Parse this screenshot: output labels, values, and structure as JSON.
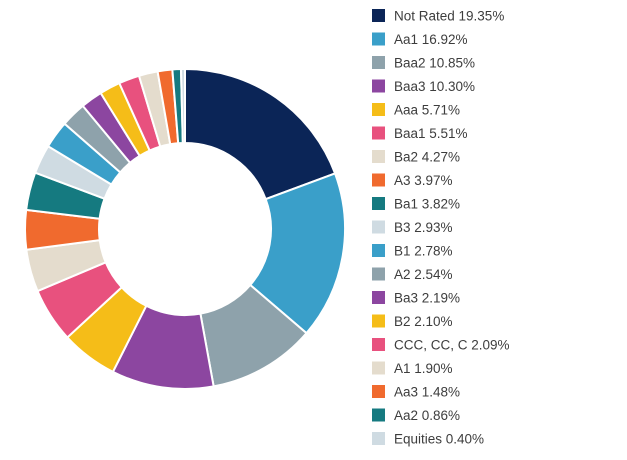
{
  "chart_data": {
    "type": "pie",
    "variant": "donut",
    "start_angle": "12 o'clock, clockwise",
    "legend_position": "right",
    "slices": [
      {
        "label": "Not Rated",
        "value": 19.35,
        "text": "Not Rated 19.35%",
        "color": "#0b2557"
      },
      {
        "label": "Aa1",
        "value": 16.92,
        "text": "Aa1 16.92%",
        "color": "#3a9fc9"
      },
      {
        "label": "Baa2",
        "value": 10.85,
        "text": "Baa2 10.85%",
        "color": "#8ea2ab"
      },
      {
        "label": "Baa3",
        "value": 10.3,
        "text": "Baa3 10.30%",
        "color": "#8c46a0"
      },
      {
        "label": "Aaa",
        "value": 5.71,
        "text": "Aaa 5.71%",
        "color": "#f5bd18"
      },
      {
        "label": "Baa1",
        "value": 5.51,
        "text": "Baa1 5.51%",
        "color": "#e8517e"
      },
      {
        "label": "Ba2",
        "value": 4.27,
        "text": "Ba2 4.27%",
        "color": "#e4dccd"
      },
      {
        "label": "A3",
        "value": 3.97,
        "text": "A3 3.97%",
        "color": "#f06a2e"
      },
      {
        "label": "Ba1",
        "value": 3.82,
        "text": "Ba1 3.82%",
        "color": "#157a80"
      },
      {
        "label": "B3",
        "value": 2.93,
        "text": "B3 2.93%",
        "color": "#cfdbe2"
      },
      {
        "label": "B1",
        "value": 2.78,
        "text": "B1 2.78%",
        "color": "#3a9fc9"
      },
      {
        "label": "A2",
        "value": 2.54,
        "text": "A2 2.54%",
        "color": "#8ea2ab"
      },
      {
        "label": "Ba3",
        "value": 2.19,
        "text": "Ba3 2.19%",
        "color": "#8c46a0"
      },
      {
        "label": "B2",
        "value": 2.1,
        "text": "B2 2.10%",
        "color": "#f5bd18"
      },
      {
        "label": "CCC, CC, C",
        "value": 2.09,
        "text": "CCC, CC, C 2.09%",
        "color": "#e8517e"
      },
      {
        "label": "A1",
        "value": 1.9,
        "text": "A1 1.90%",
        "color": "#e4dccd"
      },
      {
        "label": "Aa3",
        "value": 1.48,
        "text": "Aa3 1.48%",
        "color": "#f06a2e"
      },
      {
        "label": "Aa2",
        "value": 0.86,
        "text": "Aa2 0.86%",
        "color": "#157a80"
      },
      {
        "label": "Equities",
        "value": 0.4,
        "text": "Equities 0.40%",
        "color": "#cfdbe2"
      }
    ]
  }
}
